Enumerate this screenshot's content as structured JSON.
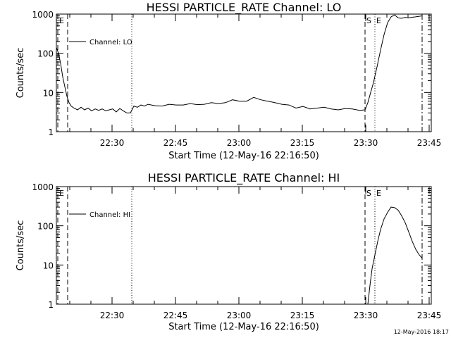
{
  "footer": {
    "timestamp": "12-May-2016 18:17"
  },
  "chart_data": [
    {
      "type": "line",
      "title": "HESSI PARTICLE_RATE Channel: LO",
      "xlabel": "Start Time (12-May-16 22:16:50)",
      "ylabel": "Counts/sec",
      "yscale": "log",
      "ylim": [
        1,
        1000
      ],
      "xlim": [
        0,
        5320
      ],
      "x_unit": "seconds since start time",
      "y_ticks": [
        "1",
        "10",
        "100",
        "1000"
      ],
      "x_tick_labels": [
        "22:30",
        "22:45",
        "23:00",
        "23:15",
        "23:30",
        "23:45"
      ],
      "x_tick_values": [
        790,
        1690,
        2590,
        3490,
        4390,
        5290
      ],
      "legend": {
        "position": "top-left",
        "entries": [
          "Channel: LO"
        ]
      },
      "markers": [
        {
          "label": "E",
          "x": 20,
          "style": "dashed"
        },
        {
          "label": "",
          "x": 160,
          "style": "dashed"
        },
        {
          "label": "",
          "x": 1070,
          "style": "dotted"
        },
        {
          "label": "S",
          "x": 4380,
          "style": "dashed"
        },
        {
          "label": "E",
          "x": 4520,
          "style": "dotted"
        },
        {
          "label": "",
          "x": 5190,
          "style": "dashdot"
        }
      ],
      "series": [
        {
          "name": "Channel: LO",
          "x": [
            0,
            30,
            60,
            90,
            120,
            150,
            180,
            210,
            250,
            300,
            350,
            400,
            450,
            500,
            550,
            600,
            650,
            700,
            750,
            800,
            850,
            900,
            950,
            1000,
            1050,
            1100,
            1150,
            1200,
            1250,
            1300,
            1400,
            1500,
            1600,
            1700,
            1800,
            1900,
            2000,
            2100,
            2200,
            2300,
            2400,
            2500,
            2600,
            2700,
            2800,
            2900,
            3000,
            3100,
            3200,
            3300,
            3400,
            3500,
            3600,
            3700,
            3800,
            3900,
            4000,
            4100,
            4200,
            4300,
            4380,
            4420,
            4460,
            4500,
            4550,
            4600,
            4650,
            4700,
            4750,
            4800,
            4850,
            4900,
            4950,
            5000,
            5050,
            5100,
            5150,
            5190
          ],
          "y": [
            140,
            100,
            55,
            25,
            14,
            8,
            5.5,
            4.5,
            4,
            3.6,
            4.2,
            3.6,
            4.0,
            3.4,
            3.8,
            3.5,
            3.8,
            3.4,
            3.6,
            3.8,
            3.2,
            3.9,
            3.4,
            3.0,
            3.0,
            4.5,
            4.2,
            4.8,
            4.5,
            5.0,
            4.6,
            4.5,
            5.0,
            4.8,
            4.8,
            5.2,
            4.9,
            5.0,
            5.5,
            5.2,
            5.5,
            6.5,
            6.0,
            6.0,
            7.5,
            6.5,
            6.0,
            5.5,
            5.0,
            4.8,
            4.0,
            4.4,
            3.8,
            4.0,
            4.2,
            3.8,
            3.6,
            3.9,
            3.8,
            3.5,
            3.6,
            5.5,
            10,
            18,
            45,
            120,
            300,
            600,
            850,
            950,
            800,
            780,
            820,
            800,
            830,
            850,
            880,
            900
          ]
        }
      ]
    },
    {
      "type": "line",
      "title": "HESSI PARTICLE_RATE Channel: HI",
      "xlabel": "Start Time (12-May-16 22:16:50)",
      "ylabel": "Counts/sec",
      "yscale": "log",
      "ylim": [
        1,
        1000
      ],
      "xlim": [
        0,
        5320
      ],
      "x_unit": "seconds since start time",
      "y_ticks": [
        "1",
        "10",
        "100",
        "1000"
      ],
      "x_tick_labels": [
        "22:30",
        "22:45",
        "23:00",
        "23:15",
        "23:30",
        "23:45"
      ],
      "x_tick_values": [
        790,
        1690,
        2590,
        3490,
        4390,
        5290
      ],
      "legend": {
        "position": "top-left",
        "entries": [
          "Channel: HI"
        ]
      },
      "markers": [
        {
          "label": "E",
          "x": 20,
          "style": "dashed"
        },
        {
          "label": "",
          "x": 160,
          "style": "dashed"
        },
        {
          "label": "",
          "x": 1070,
          "style": "dotted"
        },
        {
          "label": "S",
          "x": 4380,
          "style": "dashed"
        },
        {
          "label": "E",
          "x": 4520,
          "style": "dotted"
        },
        {
          "label": "",
          "x": 5190,
          "style": "dashdot"
        }
      ],
      "series": [
        {
          "name": "Channel: HI",
          "x": [
            4420,
            4450,
            4480,
            4520,
            4560,
            4600,
            4650,
            4700,
            4750,
            4800,
            4850,
            4900,
            4950,
            5000,
            5050,
            5100,
            5150,
            5190
          ],
          "y": [
            1,
            3,
            8,
            18,
            40,
            80,
            150,
            220,
            300,
            290,
            250,
            180,
            120,
            70,
            40,
            25,
            18,
            15
          ]
        }
      ]
    }
  ]
}
